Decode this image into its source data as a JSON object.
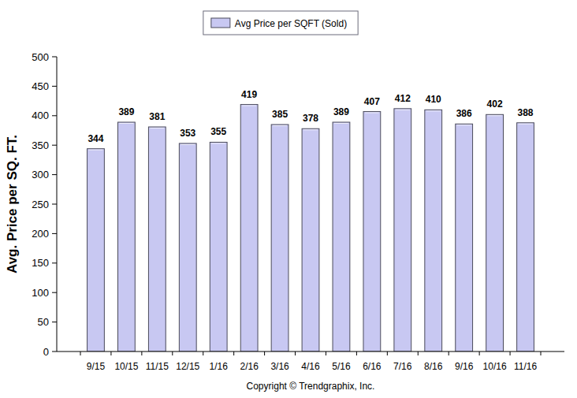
{
  "chart_data": {
    "type": "bar",
    "y_label": "Avg. Price per SQ. FT.",
    "annotations": [
      "Copyright © Trendgraphix, Inc."
    ],
    "categories": [
      "9/15",
      "10/15",
      "11/15",
      "12/15",
      "1/16",
      "2/16",
      "3/16",
      "4/16",
      "5/16",
      "6/16",
      "7/16",
      "8/16",
      "9/16",
      "10/16",
      "11/16"
    ],
    "series": [
      {
        "name": "Avg Price per SQFT (Sold)",
        "color": "#c8c8f2",
        "values": [
          344,
          389,
          381,
          353,
          355,
          419,
          385,
          378,
          389,
          407,
          412,
          410,
          386,
          402,
          388
        ]
      }
    ],
    "ylim": [
      0,
      500
    ],
    "yticks": [
      0,
      50,
      100,
      150,
      200,
      250,
      300,
      350,
      400,
      450,
      500
    ],
    "grid": false,
    "legend": "top",
    "data_labels": true
  }
}
